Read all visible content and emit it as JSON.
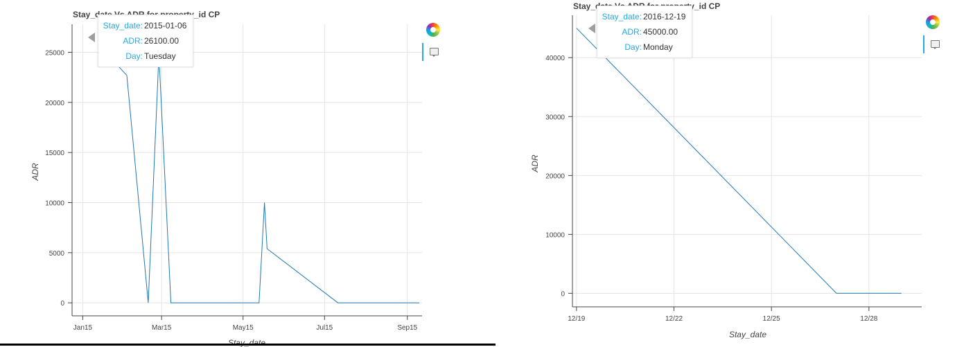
{
  "chart_data": [
    {
      "type": "line",
      "title": "Stay_date Vs ADR for property_id CP",
      "xlabel": "Stay_date",
      "ylabel": "ADR",
      "x_type": "date",
      "xlim": [
        "2015-01-07",
        "2015-09-26"
      ],
      "ylim": [
        -1300,
        27800
      ],
      "x_ticks": [
        {
          "date": "2015-01-15",
          "label": "Jan15"
        },
        {
          "date": "2015-03-15",
          "label": "Mar15"
        },
        {
          "date": "2015-05-15",
          "label": "May15"
        },
        {
          "date": "2015-07-15",
          "label": "Jul15"
        },
        {
          "date": "2015-09-15",
          "label": "Sep15"
        }
      ],
      "y_ticks": [
        0,
        5000,
        10000,
        15000,
        20000,
        25000
      ],
      "grid": true,
      "series": [
        {
          "color": "#1f77b4",
          "x": [
            "2015-02-01",
            "2015-02-17",
            "2015-03-05",
            "2015-03-13",
            "2015-03-22",
            "2015-04-01",
            "2015-04-15",
            "2015-05-01",
            "2015-05-15",
            "2015-05-27",
            "2015-05-31",
            "2015-06-02",
            "2015-07-25",
            "2015-08-15",
            "2015-09-05",
            "2015-09-24"
          ],
          "y": [
            25000,
            22700,
            0,
            24800,
            0,
            0,
            0,
            0,
            0,
            0,
            10000,
            5400,
            0,
            0,
            0,
            0
          ]
        }
      ],
      "tooltip": {
        "rows": [
          {
            "key": "Stay_date:",
            "value": "2015-01-06"
          },
          {
            "key": "ADR:",
            "value": "26100.00"
          },
          {
            "key": "Day:",
            "value": "Tuesday"
          }
        ]
      }
    },
    {
      "type": "line",
      "title": "Stay_date Vs ADR for property_id CP",
      "xlabel": "Stay_date",
      "ylabel": "ADR",
      "x_type": "date",
      "xlim": [
        "2016-12-18T21:00",
        "2016-12-29T15:00"
      ],
      "ylim": [
        -2300,
        47200
      ],
      "x_ticks": [
        {
          "date": "2016-12-19",
          "label": "12/19"
        },
        {
          "date": "2016-12-22",
          "label": "12/22"
        },
        {
          "date": "2016-12-25",
          "label": "12/25"
        },
        {
          "date": "2016-12-28",
          "label": "12/28"
        }
      ],
      "y_ticks": [
        0,
        10000,
        20000,
        30000,
        40000
      ],
      "grid": true,
      "series": [
        {
          "color": "#1f77b4",
          "x": [
            "2016-12-19",
            "2016-12-27",
            "2016-12-28",
            "2016-12-29"
          ],
          "y": [
            45000,
            0,
            0,
            0
          ]
        }
      ],
      "tooltip": {
        "rows": [
          {
            "key": "Stay_date:",
            "value": "2016-12-19"
          },
          {
            "key": "ADR:",
            "value": "45000.00"
          },
          {
            "key": "Day:",
            "value": "Monday"
          }
        ]
      }
    }
  ]
}
